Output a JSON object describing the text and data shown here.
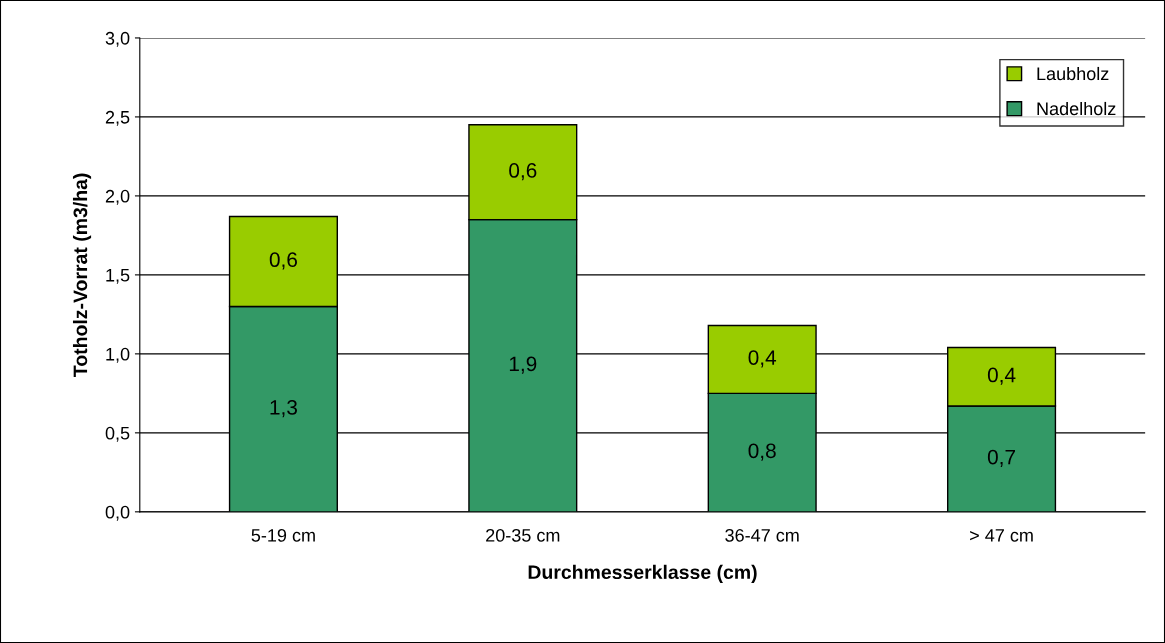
{
  "chart_data": {
    "type": "bar",
    "stacked": true,
    "xlabel": "Durchmesserklasse (cm)",
    "ylabel": "Totholz-Vorrat (m3/ha)",
    "categories": [
      "5-19 cm",
      "20-35 cm",
      "36-47 cm",
      "> 47 cm"
    ],
    "series": [
      {
        "name": "Nadelholz",
        "color": "#339966",
        "values": [
          1.3,
          1.85,
          0.75,
          0.67
        ],
        "value_labels": [
          "1,3",
          "1,9",
          "0,8",
          "0,7"
        ]
      },
      {
        "name": "Laubholz",
        "color": "#99cc00",
        "values": [
          0.57,
          0.6,
          0.43,
          0.37
        ],
        "value_labels": [
          "0,6",
          "0,6",
          "0,4",
          "0,4"
        ]
      }
    ],
    "ylim": [
      0,
      3
    ],
    "yticks": [
      {
        "value": 0,
        "label": "0,0"
      },
      {
        "value": 0.5,
        "label": "0,5"
      },
      {
        "value": 1,
        "label": "1,0"
      },
      {
        "value": 1.5,
        "label": "1,5"
      },
      {
        "value": 2,
        "label": "2,0"
      },
      {
        "value": 2.5,
        "label": "2,5"
      },
      {
        "value": 3,
        "label": "3,0"
      }
    ],
    "grid": "y",
    "legend": "top right"
  }
}
